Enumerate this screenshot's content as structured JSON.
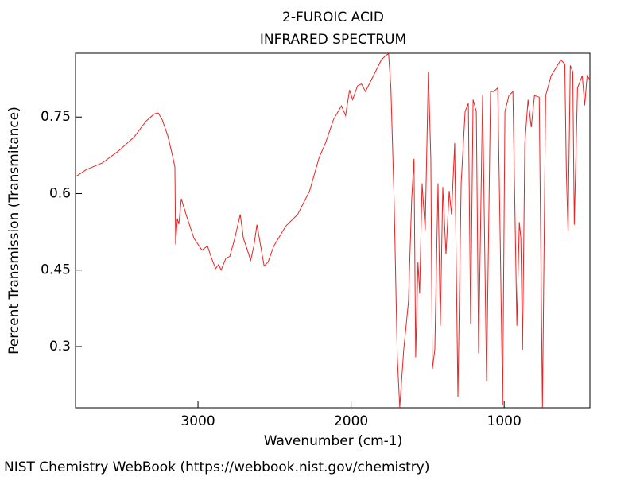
{
  "chart_data": {
    "type": "line",
    "title": "2-FUROIC ACID",
    "subtitle": "INFRARED SPECTRUM",
    "xlabel": "Wavenumber (cm-1)",
    "ylabel": "Percent Transmission (Transmitance)",
    "footer": "NIST Chemistry WebBook (https://webbook.nist.gov/chemistry)",
    "xlim": [
      3800,
      440
    ],
    "ylim": [
      0.18,
      0.875
    ],
    "xticks": [
      3000,
      2000,
      1000
    ],
    "yticks": [
      0.3,
      0.45,
      0.6,
      0.75
    ],
    "x": [
      3800,
      3729,
      3625,
      3521,
      3417,
      3339,
      3286,
      3260,
      3234,
      3198,
      3167,
      3151,
      3146,
      3135,
      3125,
      3109,
      3078,
      3026,
      2974,
      2938,
      2911,
      2885,
      2865,
      2849,
      2818,
      2792,
      2760,
      2724,
      2703,
      2677,
      2656,
      2635,
      2615,
      2599,
      2568,
      2542,
      2505,
      2427,
      2349,
      2271,
      2208,
      2167,
      2115,
      2063,
      2036,
      2010,
      1990,
      1958,
      1932,
      1906,
      1854,
      1802,
      1776,
      1755,
      1740,
      1719,
      1698,
      1682,
      1656,
      1625,
      1604,
      1589,
      1578,
      1563,
      1552,
      1536,
      1516,
      1495,
      1479,
      1469,
      1453,
      1432,
      1417,
      1401,
      1380,
      1359,
      1344,
      1323,
      1302,
      1281,
      1255,
      1234,
      1219,
      1203,
      1182,
      1167,
      1141,
      1115,
      1089,
      1068,
      1042,
      1026,
      1010,
      995,
      969,
      943,
      917,
      901,
      891,
      880,
      865,
      844,
      823,
      802,
      771,
      750,
      729,
      693,
      630,
      604,
      594,
      583,
      568,
      552,
      542,
      521,
      490,
      474,
      458,
      440
    ],
    "series": [
      {
        "name": "2-FUROIC ACID",
        "color": "#ee2222",
        "values": [
          0.633,
          0.647,
          0.66,
          0.683,
          0.711,
          0.742,
          0.756,
          0.758,
          0.745,
          0.714,
          0.675,
          0.652,
          0.5,
          0.551,
          0.54,
          0.59,
          0.559,
          0.512,
          0.489,
          0.497,
          0.473,
          0.453,
          0.461,
          0.45,
          0.473,
          0.477,
          0.512,
          0.559,
          0.512,
          0.489,
          0.469,
          0.497,
          0.539,
          0.512,
          0.458,
          0.466,
          0.497,
          0.536,
          0.559,
          0.605,
          0.671,
          0.699,
          0.745,
          0.772,
          0.753,
          0.803,
          0.784,
          0.811,
          0.815,
          0.8,
          0.831,
          0.862,
          0.87,
          0.874,
          0.807,
          0.589,
          0.279,
          0.181,
          0.294,
          0.388,
          0.589,
          0.668,
          0.279,
          0.466,
          0.404,
          0.62,
          0.528,
          0.839,
          0.668,
          0.256,
          0.294,
          0.62,
          0.341,
          0.613,
          0.481,
          0.605,
          0.559,
          0.699,
          0.201,
          0.62,
          0.761,
          0.777,
          0.344,
          0.784,
          0.761,
          0.287,
          0.792,
          0.233,
          0.8,
          0.8,
          0.807,
          0.512,
          0.186,
          0.761,
          0.792,
          0.8,
          0.341,
          0.544,
          0.512,
          0.294,
          0.699,
          0.784,
          0.73,
          0.792,
          0.789,
          0.181,
          0.792,
          0.831,
          0.862,
          0.854,
          0.644,
          0.528,
          0.851,
          0.839,
          0.539,
          0.807,
          0.831,
          0.773,
          0.831,
          0.823
        ]
      }
    ]
  }
}
